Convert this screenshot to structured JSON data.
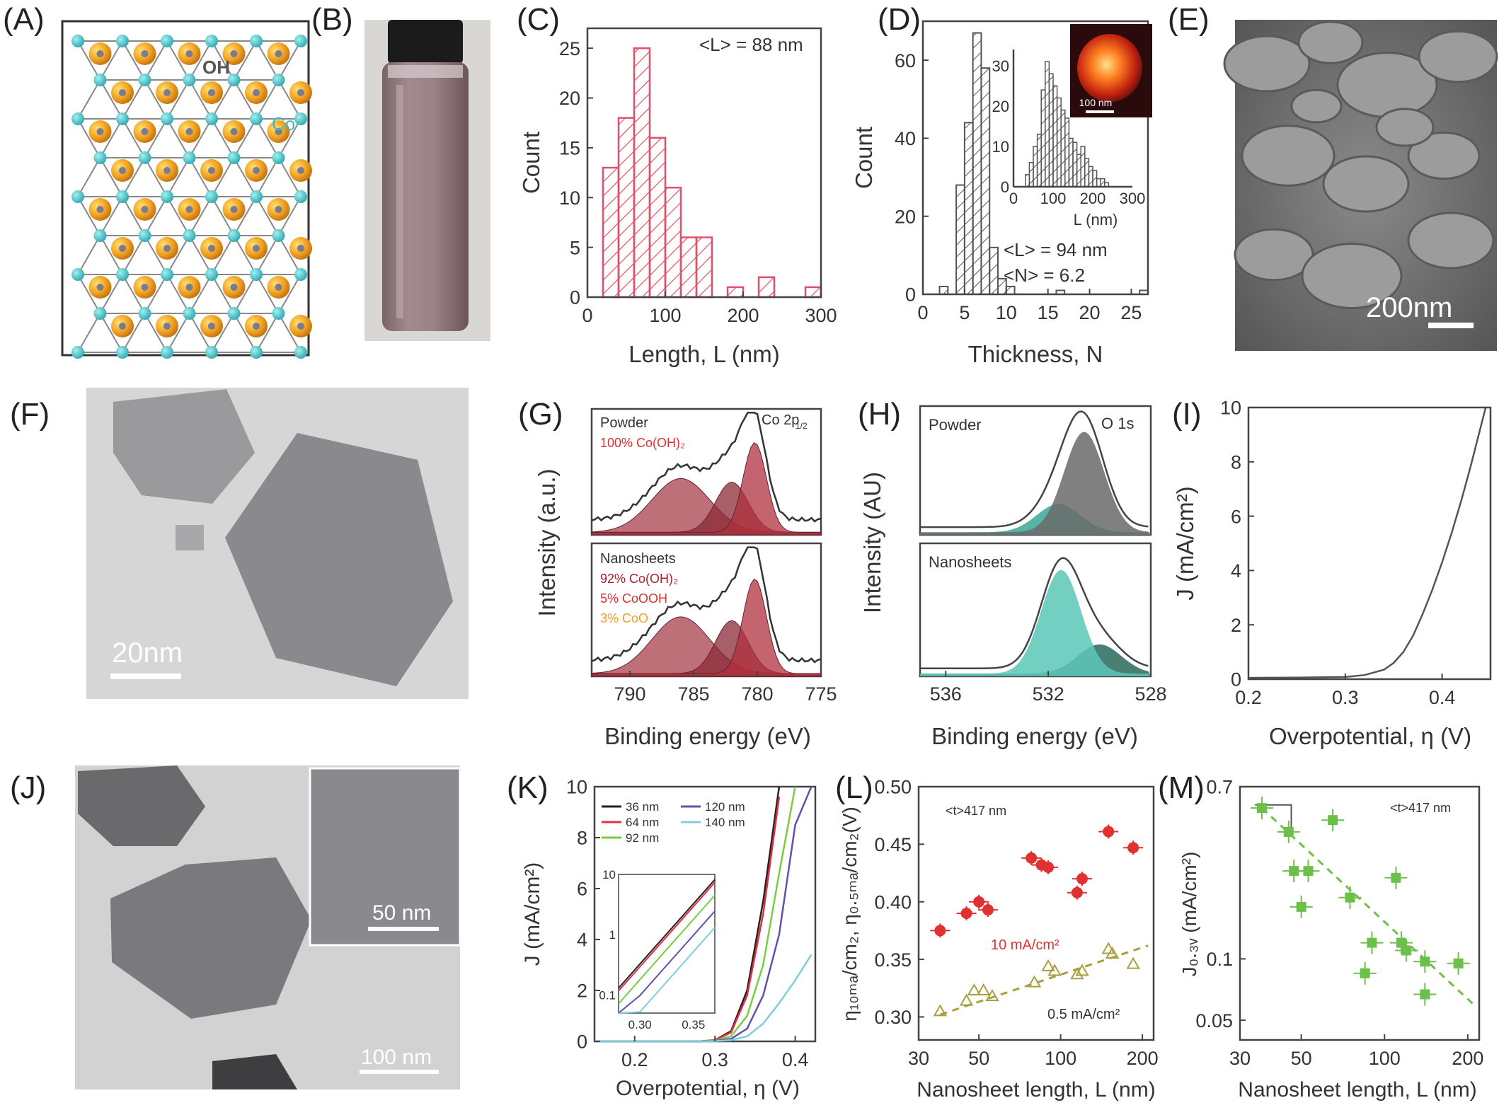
{
  "figure": {
    "panels": [
      "(A)",
      "(B)",
      "(C)",
      "(D)",
      "(E)",
      "(F)",
      "(G)",
      "(H)",
      "(I)",
      "(J)",
      "(K)",
      "(L)",
      "(M)"
    ],
    "panel_a": {
      "oh_label": "OH",
      "co_label": "Co"
    },
    "panel_e": {
      "scale_label": "200nm"
    },
    "panel_f": {
      "scale_label": "20nm"
    },
    "panel_j": {
      "scale_label": "100 nm",
      "inset_scale_label": "50 nm"
    },
    "panel_g": {
      "title": "Co 2p",
      "title_sub": "1/2",
      "top_label": "Powder",
      "top_comp": "100% Co(OH)",
      "bottom_label": "Nanosheets",
      "bottom_comp": [
        "92% Co(OH)",
        "5% CoOOH",
        "3% CoO"
      ],
      "xlabel": "Binding energy (eV)",
      "ylabel": "Intensity (a.u.)",
      "xticks": [
        "790",
        "785",
        "780",
        "775"
      ]
    },
    "panel_h": {
      "title": "O 1s",
      "top_label": "Powder",
      "bottom_label": "Nanosheets",
      "xlabel": "Binding energy (eV)",
      "ylabel": "Intensity (AU)",
      "xticks": [
        "536",
        "532",
        "528"
      ]
    },
    "colors": {
      "pink": "#e0506a",
      "dark": "#555555",
      "teal": "#5cc7b8",
      "maroon": "#a8404c",
      "green": "#6cc04a",
      "red": "#e03030",
      "olive": "#a8a040"
    }
  },
  "chart_data": [
    {
      "id": "C",
      "type": "bar",
      "bin_starts": [
        20,
        40,
        60,
        80,
        100,
        120,
        140,
        160,
        180,
        200,
        220,
        240,
        260,
        280
      ],
      "bin_width": 20,
      "values": [
        13,
        18,
        25,
        16,
        11,
        6,
        6,
        0,
        1,
        0,
        2,
        0,
        0,
        1
      ],
      "annotation": "<L> = 88 nm",
      "xlabel": "Length, L (nm)",
      "ylabel": "Count",
      "xlim": [
        0,
        300
      ],
      "ylim": [
        0,
        27
      ],
      "xticks": [
        "0",
        "100",
        "200",
        "300"
      ],
      "yticks": [
        "0",
        "5",
        "10",
        "15",
        "20",
        "25"
      ]
    },
    {
      "id": "D",
      "type": "bar",
      "bin_starts": [
        2,
        3,
        4,
        5,
        6,
        7,
        8,
        9,
        10,
        11,
        12,
        13,
        14,
        15,
        16,
        17,
        18,
        19,
        20,
        21,
        22,
        23,
        24,
        25,
        26
      ],
      "bin_width": 1,
      "values": [
        2,
        0,
        28,
        44,
        67,
        58,
        12,
        4,
        2,
        0,
        0,
        0,
        0,
        0,
        1,
        0,
        0,
        0,
        0,
        0,
        0,
        0,
        0,
        0,
        1
      ],
      "annotation": [
        "<L> = 94 nm",
        "<N> = 6.2"
      ],
      "xlabel": "Thickness, N",
      "ylabel": "Count",
      "xlim": [
        0,
        27
      ],
      "ylim": [
        0,
        70
      ],
      "xticks": [
        "0",
        "5",
        "10",
        "15",
        "20",
        "25"
      ],
      "yticks": [
        "0",
        "20",
        "40",
        "60"
      ],
      "inset": {
        "bin_starts": [
          30,
          40,
          50,
          60,
          70,
          80,
          90,
          100,
          110,
          120,
          130,
          140,
          150,
          160,
          170,
          180,
          190,
          200,
          210,
          220,
          230
        ],
        "bin_width": 10,
        "values": [
          3,
          6,
          10,
          13,
          24,
          31,
          28,
          25,
          22,
          19,
          17,
          12,
          11,
          8,
          10,
          7,
          5,
          4,
          2,
          2,
          1
        ],
        "xlabel": "L (nm)",
        "xticks": [
          "0",
          "100",
          "200",
          "300"
        ],
        "yticks": [
          "0",
          "10",
          "20",
          "30"
        ],
        "scale_label": "100 nm"
      }
    },
    {
      "id": "I",
      "type": "line",
      "x": [
        0.2,
        0.25,
        0.3,
        0.32,
        0.34,
        0.35,
        0.36,
        0.37,
        0.38,
        0.39,
        0.4,
        0.41,
        0.42,
        0.43,
        0.44,
        0.445
      ],
      "y": [
        0.05,
        0.06,
        0.08,
        0.15,
        0.35,
        0.6,
        1.0,
        1.6,
        2.4,
        3.3,
        4.3,
        5.4,
        6.6,
        7.9,
        9.3,
        10
      ],
      "xlabel": "Overpotential, η (V)",
      "ylabel": "J (mA/cm2)",
      "xlim": [
        0.2,
        0.45
      ],
      "ylim": [
        0,
        10
      ],
      "xticks": [
        "0.2",
        "0.3",
        "0.4"
      ],
      "yticks": [
        "0",
        "2",
        "4",
        "6",
        "8",
        "10"
      ]
    },
    {
      "id": "K",
      "type": "line",
      "x": [
        0.15,
        0.25,
        0.28,
        0.3,
        0.32,
        0.34,
        0.36,
        0.38,
        0.4,
        0.42
      ],
      "series": [
        {
          "name": "36 nm",
          "color": "#222222",
          "values": [
            0,
            0,
            0,
            0.05,
            0.4,
            2.0,
            5.5,
            10,
            null,
            null
          ]
        },
        {
          "name": "64 nm",
          "color": "#e03040",
          "values": [
            0,
            0,
            0,
            0.05,
            0.35,
            1.8,
            5.0,
            9.6,
            null,
            null
          ]
        },
        {
          "name": "92 nm",
          "color": "#7acc40",
          "values": [
            0,
            0,
            0,
            0.03,
            0.2,
            1.0,
            3.0,
            6.6,
            10,
            null
          ]
        },
        {
          "name": "120 nm",
          "color": "#6050b0",
          "values": [
            0,
            0,
            0,
            0.02,
            0.1,
            0.5,
            1.8,
            4.2,
            8.5,
            10
          ]
        },
        {
          "name": "140 nm",
          "color": "#80ccdd",
          "values": [
            0,
            0,
            0,
            0.01,
            0.05,
            0.2,
            0.7,
            1.5,
            2.4,
            3.4
          ]
        }
      ],
      "xlabel": "Overpotential, η (V)",
      "ylabel": "J (mA/cm2)",
      "xlim": [
        0.15,
        0.425
      ],
      "ylim": [
        0,
        10
      ],
      "xticks": [
        "0.2",
        "0.3",
        "0.4"
      ],
      "yticks": [
        "0",
        "2",
        "4",
        "6",
        "8",
        "10"
      ],
      "inset": {
        "xticks": [
          "0.30",
          "0.35"
        ],
        "yticks": [
          "0.1",
          "1",
          "10"
        ]
      }
    },
    {
      "id": "L",
      "type": "scatter",
      "series": [
        {
          "name": "10 mA/cm2",
          "color": "#e03030",
          "points": [
            [
              36,
              0.375
            ],
            [
              45,
              0.39
            ],
            [
              50,
              0.4
            ],
            [
              54,
              0.393
            ],
            [
              78,
              0.438
            ],
            [
              85,
              0.432
            ],
            [
              90,
              0.43
            ],
            [
              115,
              0.408
            ],
            [
              120,
              0.42
            ],
            [
              150,
              0.461
            ],
            [
              185,
              0.447
            ]
          ]
        },
        {
          "name": "0.5 mA/cm2",
          "color": "#a8a040",
          "points": [
            [
              36,
              0.305
            ],
            [
              45,
              0.314
            ],
            [
              48,
              0.323
            ],
            [
              52,
              0.323
            ],
            [
              56,
              0.318
            ],
            [
              80,
              0.33
            ],
            [
              90,
              0.344
            ],
            [
              95,
              0.34
            ],
            [
              115,
              0.337
            ],
            [
              120,
              0.34
            ],
            [
              150,
              0.359
            ],
            [
              155,
              0.355
            ],
            [
              185,
              0.346
            ]
          ]
        }
      ],
      "annotation": "<t>417 nm",
      "xlabel": "Nanosheet length, L (nm)",
      "ylabel": "η10mA/cm2, η0.5mA/cm2(V)",
      "xlim": [
        30,
        220
      ],
      "ylim": [
        0.28,
        0.5
      ],
      "xscale": "log",
      "xticks": [
        "30",
        "50",
        "100",
        "200"
      ],
      "yticks": [
        "0.30",
        "0.35",
        "0.40",
        "0.45",
        "0.50"
      ]
    },
    {
      "id": "M",
      "type": "scatter",
      "series": [
        {
          "name": "J0.3V",
          "color": "#6cc04a",
          "points": [
            [
              36,
              0.55
            ],
            [
              45,
              0.42
            ],
            [
              47,
              0.27
            ],
            [
              50,
              0.18
            ],
            [
              53,
              0.27
            ],
            [
              65,
              0.48
            ],
            [
              75,
              0.2
            ],
            [
              85,
              0.085
            ],
            [
              90,
              0.12
            ],
            [
              110,
              0.25
            ],
            [
              115,
              0.12
            ],
            [
              120,
              0.11
            ],
            [
              140,
              0.097
            ],
            [
              140,
              0.067
            ],
            [
              185,
              0.095
            ]
          ]
        }
      ],
      "annotation": "<t>417 nm",
      "xlabel": "Nanosheet length, L (nm)",
      "ylabel": "J0.3V (mA/cm2)",
      "xlim": [
        30,
        220
      ],
      "ylim": [
        0.04,
        0.7
      ],
      "xscale": "log",
      "yscale": "log",
      "xticks": [
        "30",
        "50",
        "100",
        "200"
      ],
      "yticks": [
        "0.05",
        "0.1",
        "0.7"
      ]
    }
  ]
}
